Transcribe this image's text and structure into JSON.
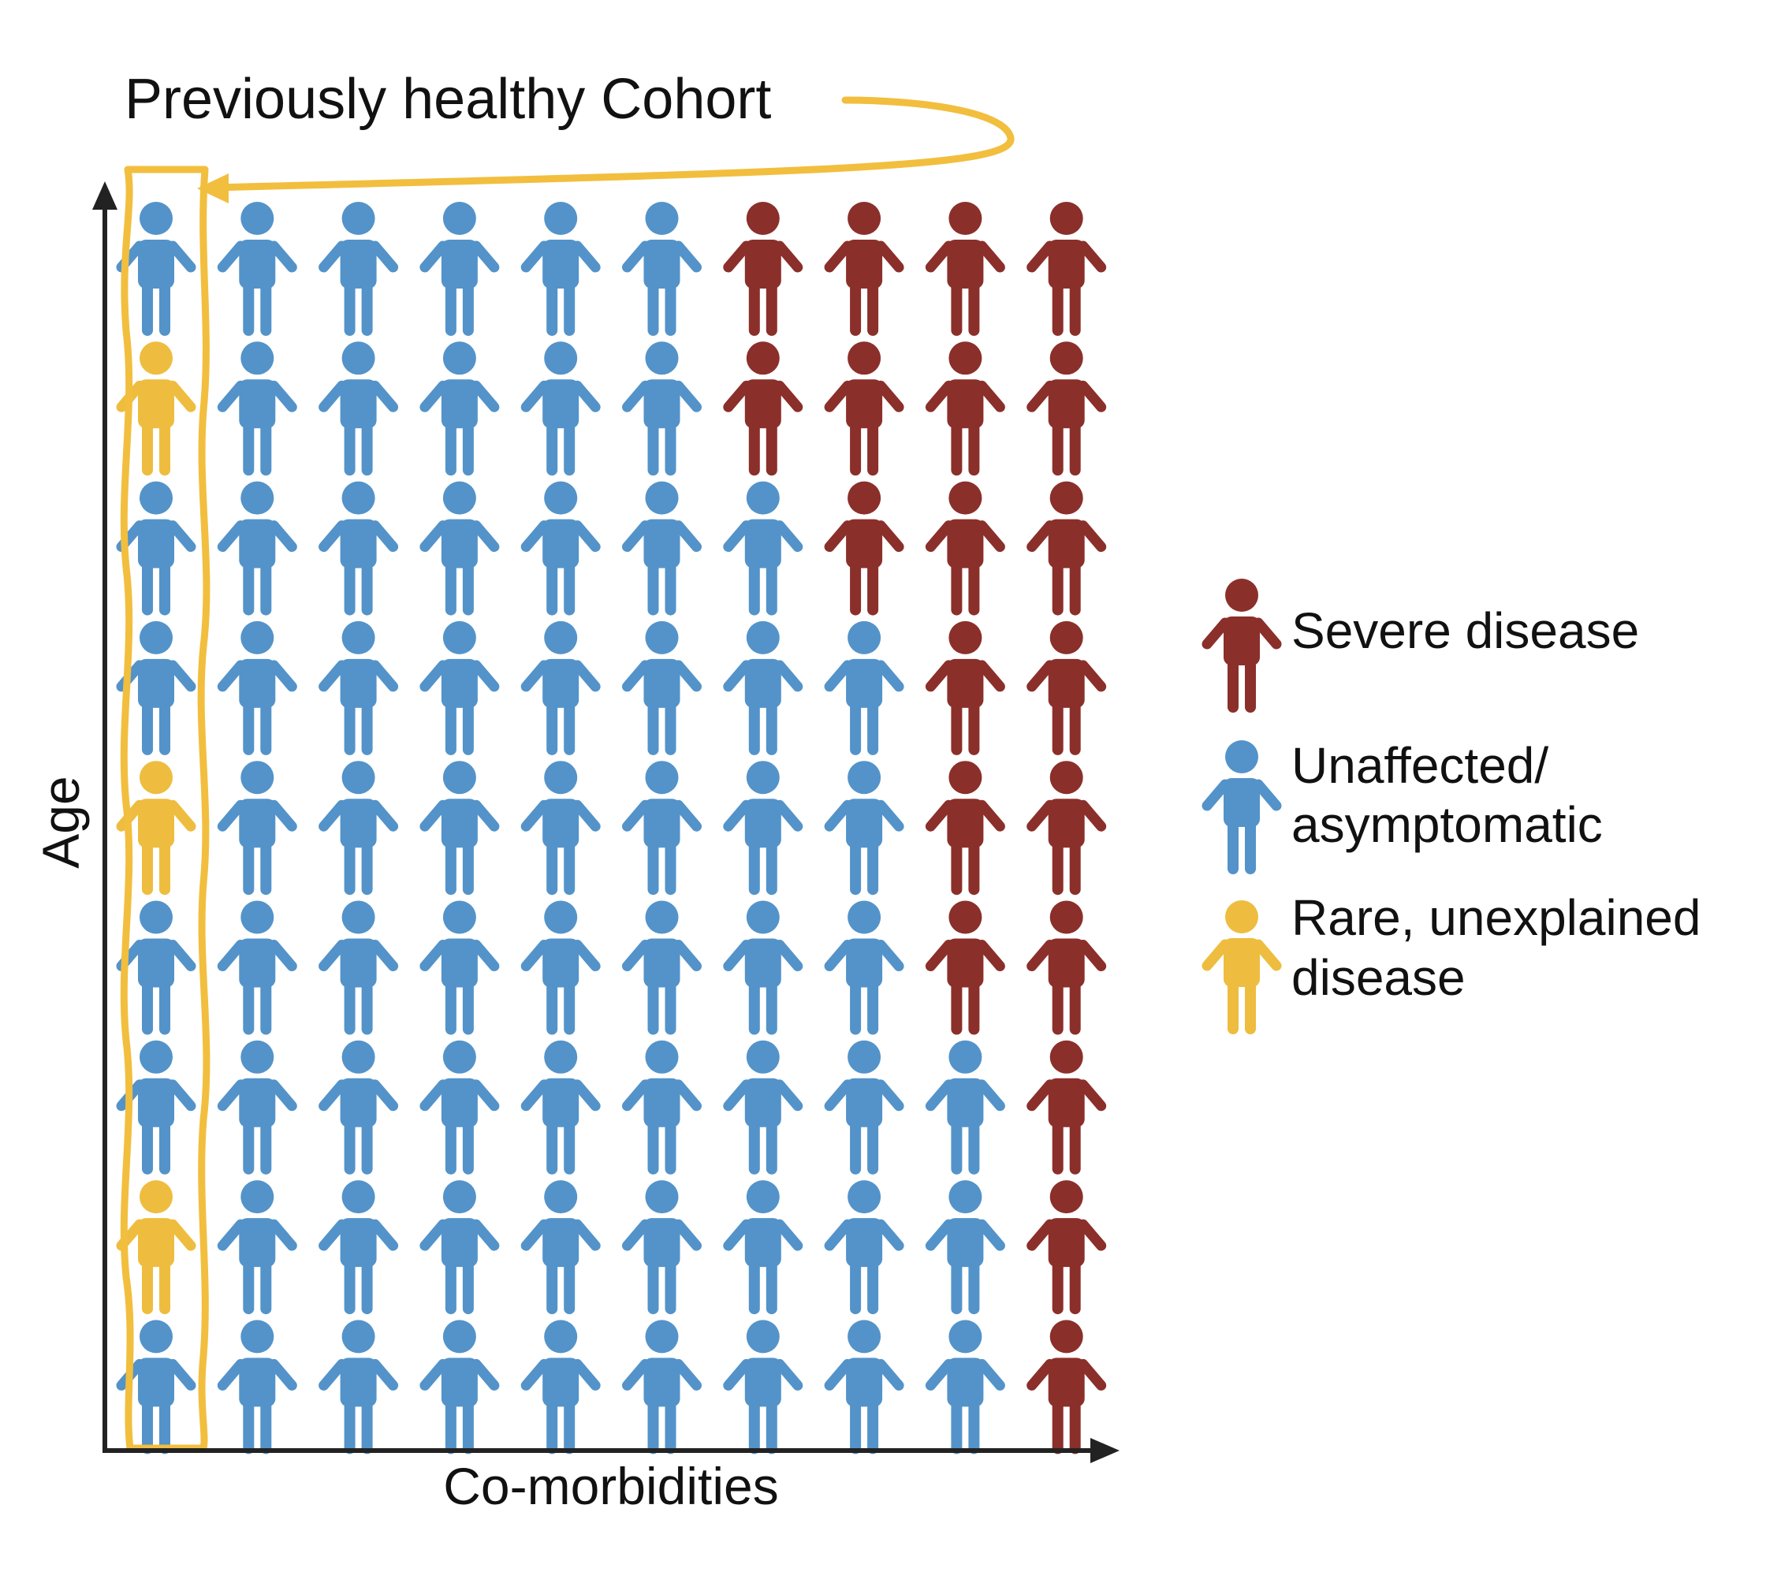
{
  "title": "Previously healthy Cohort",
  "x_axis_label": "Co-morbidities",
  "y_axis_label": "Age",
  "colors": {
    "severe": "#8B2F2A",
    "unaffected": "#5393C9",
    "rare": "#EEBD3F",
    "highlight": "#F2BE3E",
    "axis": "#222222"
  },
  "legend": [
    {
      "key": "severe",
      "lines": [
        "Severe disease"
      ]
    },
    {
      "key": "unaffected",
      "lines": [
        "Unaffected/",
        "asymptomatic"
      ]
    },
    {
      "key": "rare",
      "lines": [
        "Rare, unexplained",
        "disease"
      ]
    }
  ],
  "grid": {
    "columns": 10,
    "rows": [
      [
        "unaffected",
        "unaffected",
        "unaffected",
        "unaffected",
        "unaffected",
        "unaffected",
        "severe",
        "severe",
        "severe",
        "severe"
      ],
      [
        "rare",
        "unaffected",
        "unaffected",
        "unaffected",
        "unaffected",
        "unaffected",
        "severe",
        "severe",
        "severe",
        "severe"
      ],
      [
        "unaffected",
        "unaffected",
        "unaffected",
        "unaffected",
        "unaffected",
        "unaffected",
        "unaffected",
        "severe",
        "severe",
        "severe"
      ],
      [
        "unaffected",
        "unaffected",
        "unaffected",
        "unaffected",
        "unaffected",
        "unaffected",
        "unaffected",
        "unaffected",
        "severe",
        "severe"
      ],
      [
        "rare",
        "unaffected",
        "unaffected",
        "unaffected",
        "unaffected",
        "unaffected",
        "unaffected",
        "unaffected",
        "severe",
        "severe"
      ],
      [
        "unaffected",
        "unaffected",
        "unaffected",
        "unaffected",
        "unaffected",
        "unaffected",
        "unaffected",
        "unaffected",
        "severe",
        "severe"
      ],
      [
        "unaffected",
        "unaffected",
        "unaffected",
        "unaffected",
        "unaffected",
        "unaffected",
        "unaffected",
        "unaffected",
        "unaffected",
        "severe"
      ],
      [
        "rare",
        "unaffected",
        "unaffected",
        "unaffected",
        "unaffected",
        "unaffected",
        "unaffected",
        "unaffected",
        "unaffected",
        "severe"
      ],
      [
        "unaffected",
        "unaffected",
        "unaffected",
        "unaffected",
        "unaffected",
        "unaffected",
        "unaffected",
        "unaffected",
        "unaffected",
        "severe"
      ]
    ]
  }
}
